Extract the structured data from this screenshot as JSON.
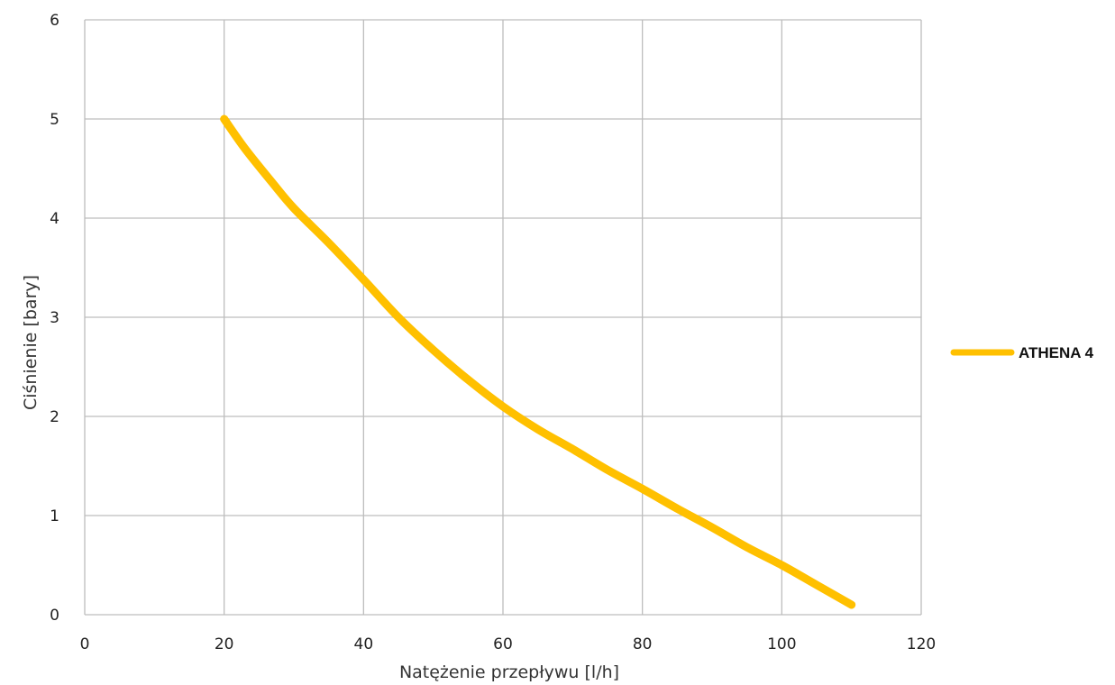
{
  "chart_data": {
    "type": "line",
    "title": "",
    "xlabel": "Natężenie przepływu [l/h]",
    "ylabel": "Ciśnienie [bary]",
    "xlim": [
      0,
      120
    ],
    "ylim": [
      0,
      6
    ],
    "xticks": [
      0,
      20,
      40,
      60,
      80,
      100,
      120
    ],
    "yticks": [
      0,
      1,
      2,
      3,
      4,
      5,
      6
    ],
    "grid": true,
    "legend_position": "right",
    "series": [
      {
        "name": "ATHENA 4",
        "color": "#FFC000",
        "x": [
          20,
          23,
          27,
          30,
          35,
          40,
          45,
          50,
          55,
          60,
          65,
          70,
          75,
          80,
          85,
          90,
          95,
          100,
          105,
          110
        ],
        "y": [
          5.0,
          4.7,
          4.35,
          4.1,
          3.75,
          3.38,
          3.0,
          2.67,
          2.37,
          2.1,
          1.87,
          1.67,
          1.46,
          1.27,
          1.07,
          0.88,
          0.68,
          0.5,
          0.3,
          0.1
        ]
      }
    ]
  }
}
